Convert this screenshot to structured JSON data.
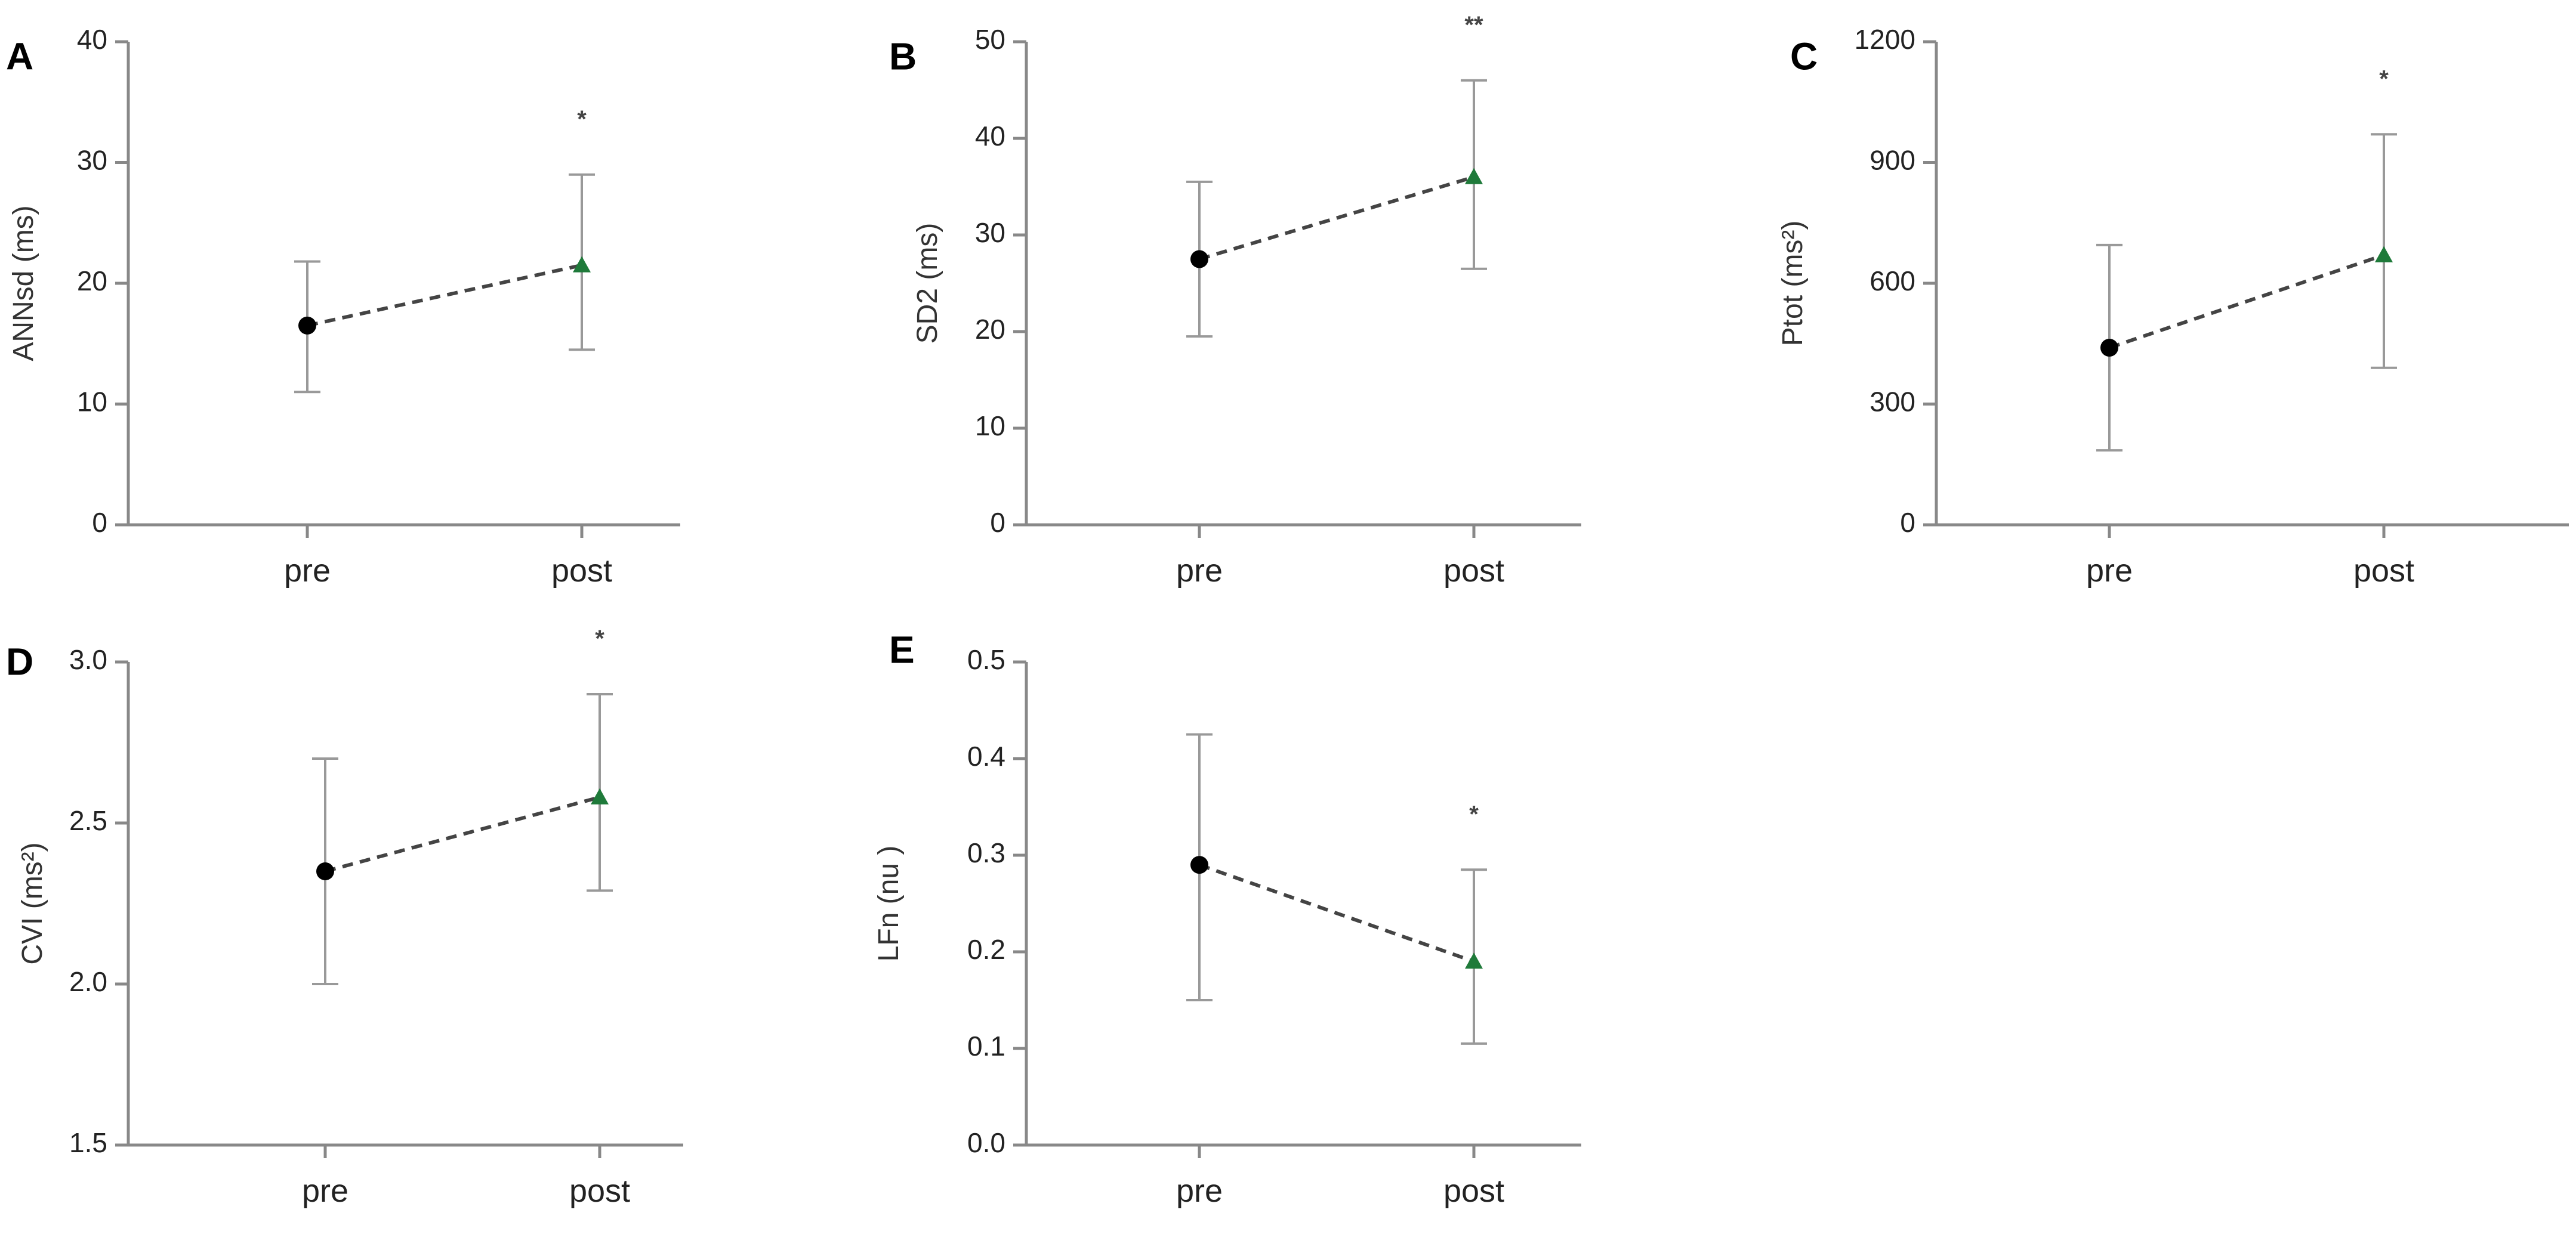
{
  "chart_data": [
    {
      "panel": "A",
      "type": "line",
      "ylabel": "ANNsd (ms)",
      "categories": [
        "pre",
        "post"
      ],
      "yticks": [
        "0",
        "10",
        "20",
        "30",
        "40"
      ],
      "ylim": [
        0,
        40
      ],
      "mean": [
        16.5,
        21.5
      ],
      "error_low": [
        11.0,
        14.5
      ],
      "error_high": [
        21.8,
        29.0
      ],
      "significance": "*",
      "colors": {
        "pre": "#000000",
        "post": "#1f7a3a"
      }
    },
    {
      "panel": "B",
      "type": "line",
      "ylabel": "SD2 (ms)",
      "categories": [
        "pre",
        "post"
      ],
      "yticks": [
        "0",
        "10",
        "20",
        "30",
        "40",
        "50"
      ],
      "ylim": [
        0,
        50
      ],
      "mean": [
        27.5,
        36.0
      ],
      "error_low": [
        19.5,
        26.5
      ],
      "error_high": [
        35.5,
        46.0
      ],
      "significance": "**",
      "colors": {
        "pre": "#000000",
        "post": "#1f7a3a"
      }
    },
    {
      "panel": "C",
      "type": "line",
      "ylabel": "Ptot (ms²)",
      "categories": [
        "pre",
        "post"
      ],
      "yticks": [
        "0",
        "300",
        "600",
        "900",
        "1200"
      ],
      "ylim": [
        0,
        1200
      ],
      "mean": [
        440,
        670
      ],
      "error_low": [
        185,
        390
      ],
      "error_high": [
        695,
        970
      ],
      "significance": "*",
      "colors": {
        "pre": "#000000",
        "post": "#1f7a3a"
      }
    },
    {
      "panel": "D",
      "type": "line",
      "ylabel": "CVI (ms²)",
      "categories": [
        "pre",
        "post"
      ],
      "yticks": [
        "1.5",
        "2.0",
        "2.5",
        "3.0"
      ],
      "ylim": [
        1.5,
        3.0
      ],
      "mean": [
        2.35,
        2.58
      ],
      "error_low": [
        2.0,
        2.29
      ],
      "error_high": [
        2.7,
        2.9
      ],
      "significance": "*",
      "colors": {
        "pre": "#000000",
        "post": "#1f7a3a"
      }
    },
    {
      "panel": "E",
      "type": "line",
      "ylabel": "LFn (nu )",
      "categories": [
        "pre",
        "post"
      ],
      "yticks": [
        "0.0",
        "0.1",
        "0.2",
        "0.3",
        "0.4",
        "0.5"
      ],
      "ylim": [
        0.0,
        0.5
      ],
      "mean": [
        0.29,
        0.19
      ],
      "error_low": [
        0.15,
        0.105
      ],
      "error_high": [
        0.425,
        0.285
      ],
      "significance": "*",
      "colors": {
        "pre": "#000000",
        "post": "#1f7a3a"
      }
    }
  ]
}
